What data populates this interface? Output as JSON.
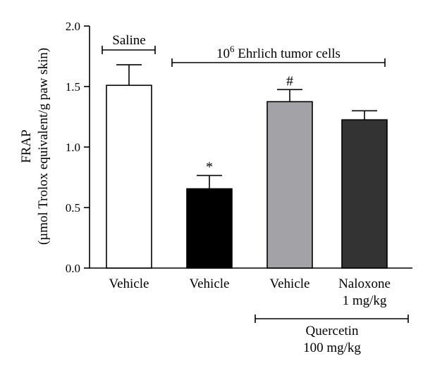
{
  "chart_data": {
    "type": "bar",
    "ylabel_line1": "FRAP",
    "ylabel_line2": "(µmol Trolox equivalent/g paw skin)",
    "ylim": [
      0,
      2.0
    ],
    "yticks": [
      "0.0",
      "0.5",
      "1.0",
      "1.5",
      "2.0"
    ],
    "ytick_values": [
      0,
      0.5,
      1.0,
      1.5,
      2.0
    ],
    "categories": [
      {
        "line1": "Vehicle",
        "line2": ""
      },
      {
        "line1": "Vehicle",
        "line2": ""
      },
      {
        "line1": "Vehicle",
        "line2": ""
      },
      {
        "line1": "Naloxone",
        "line2": "1 mg/kg"
      }
    ],
    "values": [
      1.51,
      0.655,
      1.375,
      1.225
    ],
    "errors": [
      0.17,
      0.11,
      0.1,
      0.075
    ],
    "significance": [
      "",
      "*",
      "#",
      ""
    ],
    "bar_colors": [
      "#ffffff",
      "#000000",
      "#a3a3a7",
      "#333333"
    ],
    "groups": {
      "saline": {
        "label": "Saline"
      },
      "tumor": {
        "label_base": "10",
        "label_exp": "6",
        "label_rest": " Ehrlich tumor cells"
      },
      "quercetin": {
        "line1": "Quercetin",
        "line2": "100 mg/kg"
      }
    }
  }
}
